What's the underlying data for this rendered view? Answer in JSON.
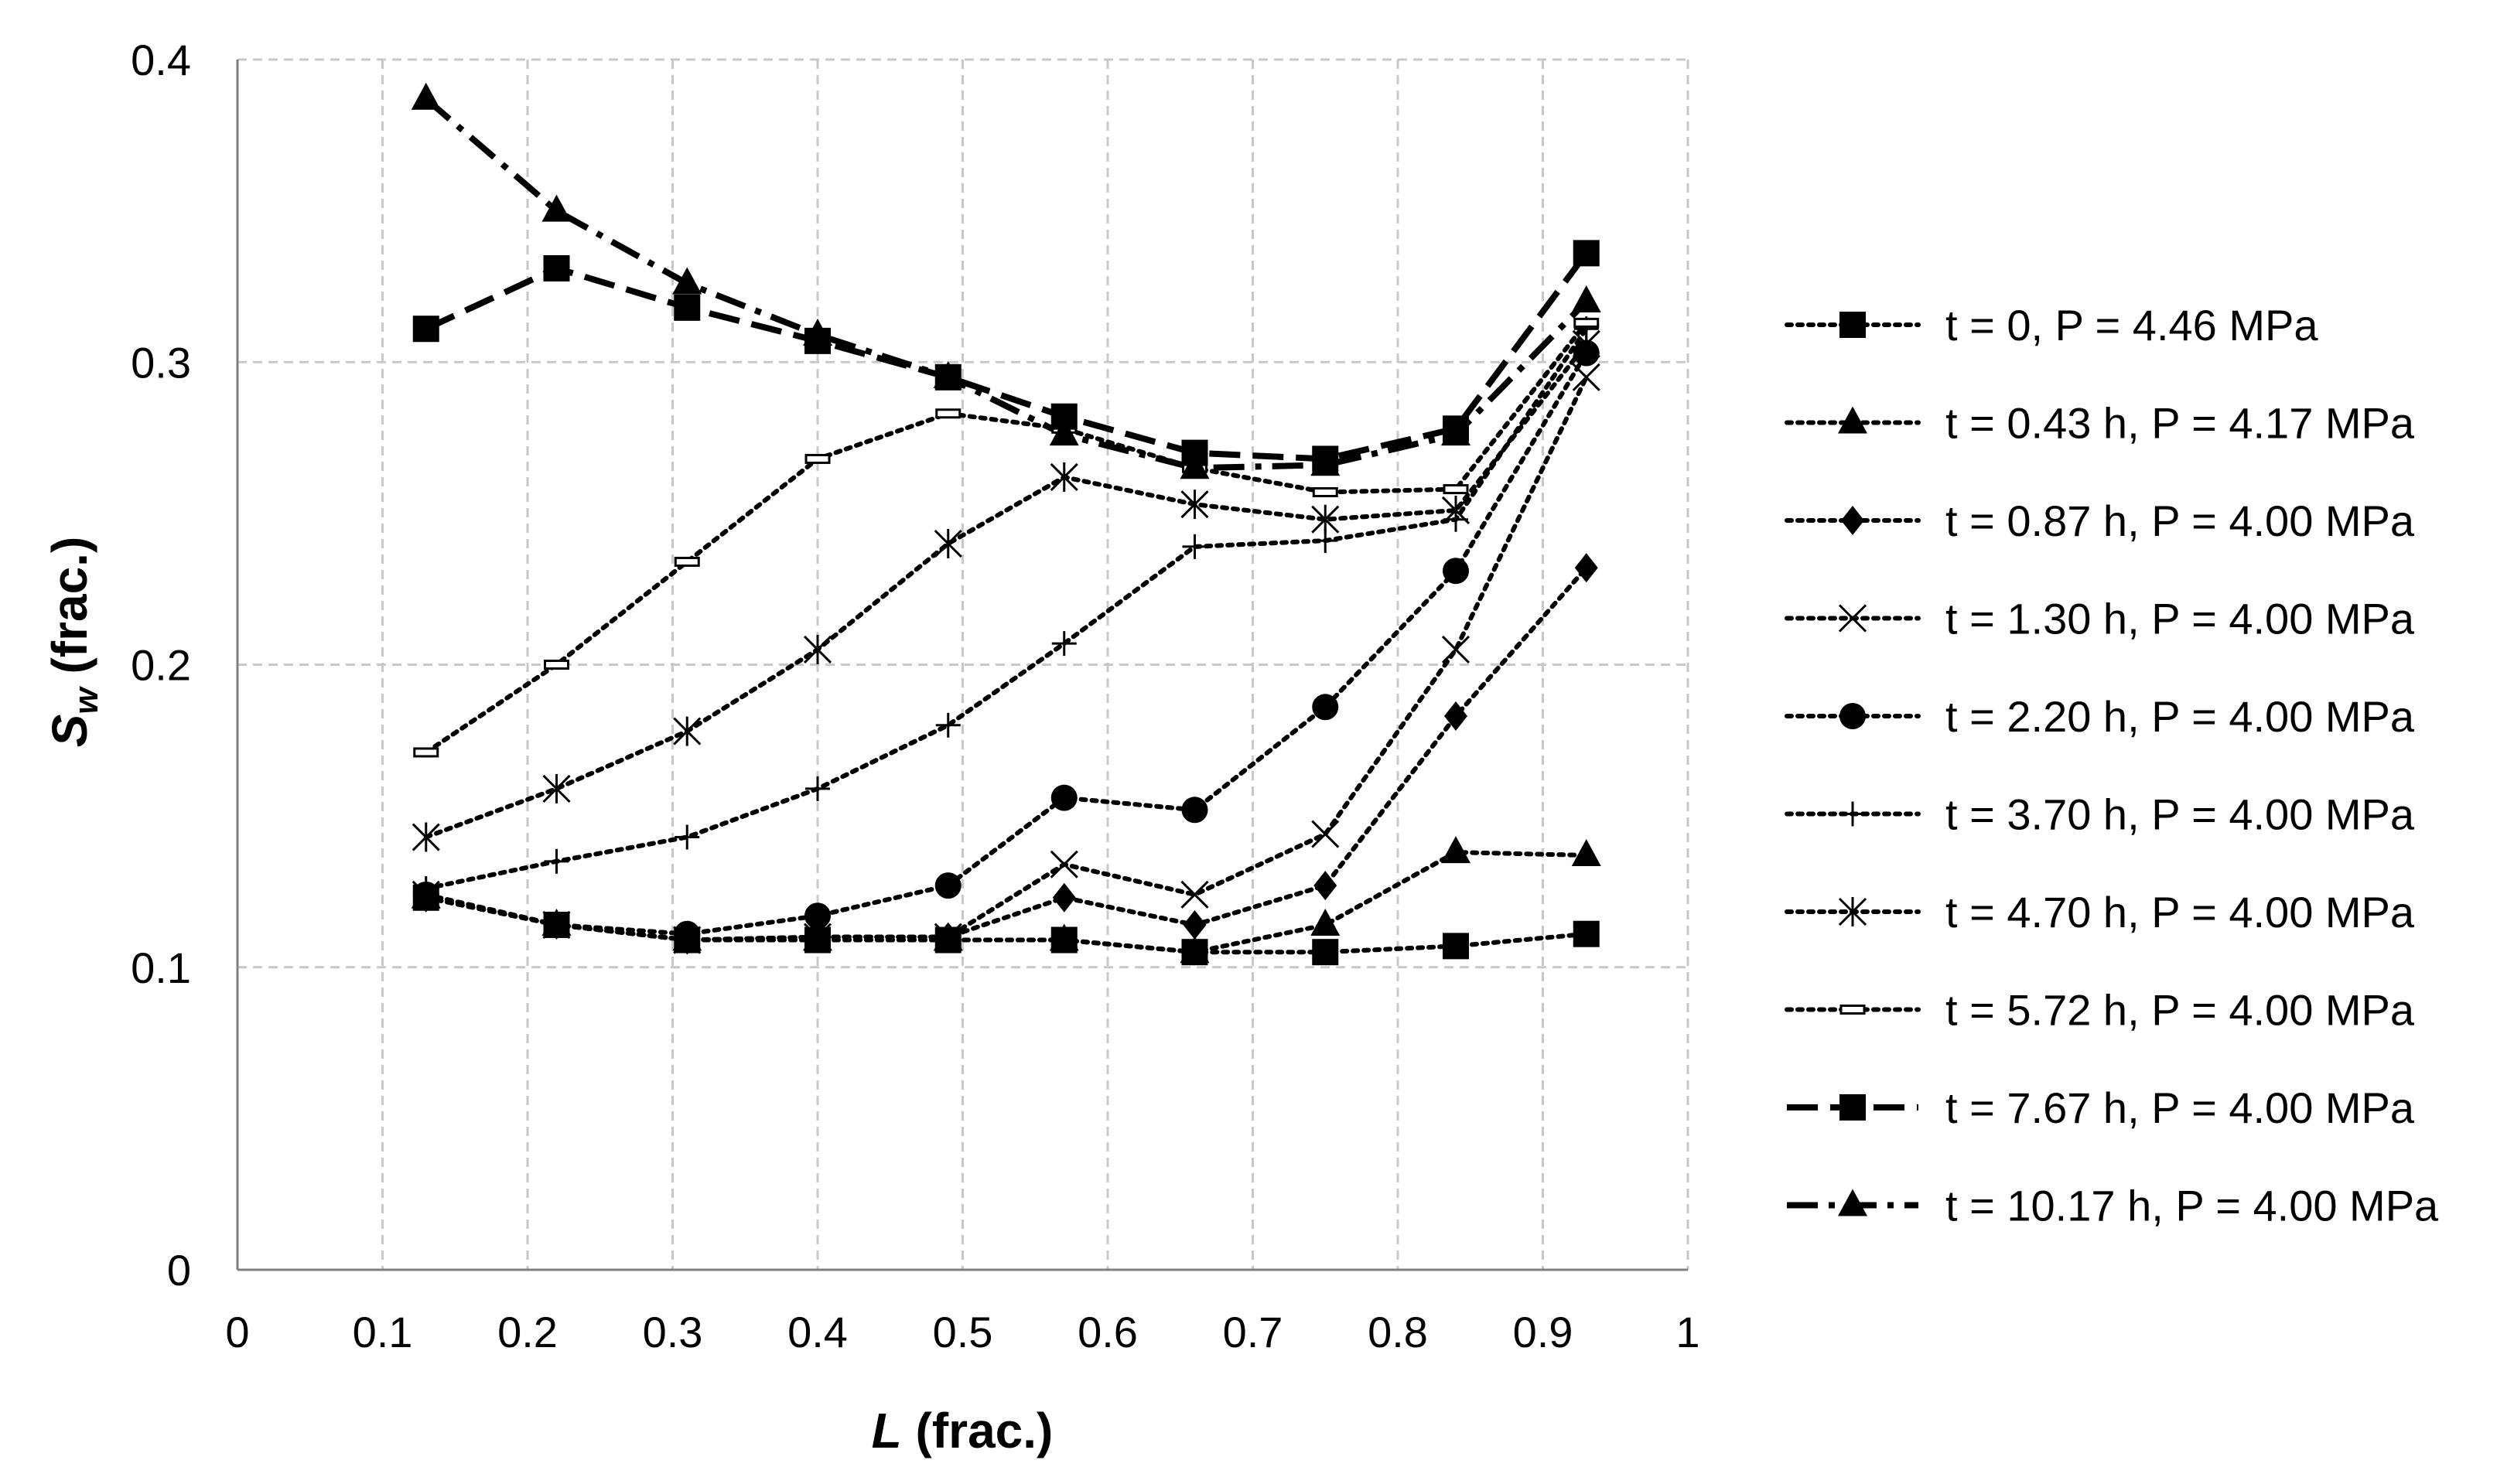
{
  "chart_data": {
    "type": "line",
    "title": "",
    "xlabel_var": "L",
    "xlabel_unit": " (frac.)",
    "ylabel_var": "S",
    "ylabel_sub": "w",
    "ylabel_unit": " (frac.)",
    "xlim": [
      0,
      1
    ],
    "ylim": [
      0,
      0.4
    ],
    "xticks": [
      0,
      0.1,
      0.2,
      0.3,
      0.4,
      0.5,
      0.6,
      0.7,
      0.8,
      0.9,
      1
    ],
    "xtick_labels": [
      "0",
      "0.1",
      "0.2",
      "0.3",
      "0.4",
      "0.5",
      "0.6",
      "0.7",
      "0.8",
      "0.9",
      "1"
    ],
    "yticks": [
      0,
      0.1,
      0.2,
      0.3,
      0.4
    ],
    "ytick_labels": [
      "0",
      "0.1",
      "0.2",
      "0.3",
      "0.4"
    ],
    "grid": true,
    "legend_position": "right",
    "x": [
      0.13,
      0.22,
      0.31,
      0.4,
      0.49,
      0.57,
      0.66,
      0.75,
      0.84,
      0.93
    ],
    "series": [
      {
        "name": "t = 0, P = 4.46 MPa",
        "marker": "square",
        "line": "dotted",
        "values": [
          0.123,
          0.114,
          0.109,
          0.109,
          0.109,
          0.109,
          0.105,
          0.105,
          0.107,
          0.111
        ]
      },
      {
        "name": "t = 0.43 h, P = 4.17 MPa",
        "marker": "triangle",
        "line": "dotted",
        "values": [
          0.123,
          0.114,
          0.109,
          0.109,
          0.109,
          0.109,
          0.105,
          0.114,
          0.138,
          0.137
        ]
      },
      {
        "name": "t = 0.87 h, P = 4.00 MPa",
        "marker": "diamond",
        "line": "dotted",
        "values": [
          0.123,
          0.114,
          0.109,
          0.11,
          0.11,
          0.123,
          0.114,
          0.127,
          0.183,
          0.232
        ]
      },
      {
        "name": "t = 1.30 h, P = 4.00 MPa",
        "marker": "x",
        "line": "dotted",
        "values": [
          0.124,
          0.114,
          0.109,
          0.11,
          0.11,
          0.134,
          0.124,
          0.144,
          0.205,
          0.295
        ]
      },
      {
        "name": "t = 2.20 h, P = 4.00 MPa",
        "marker": "circle",
        "line": "dotted",
        "values": [
          0.124,
          0.114,
          0.111,
          0.117,
          0.127,
          0.156,
          0.152,
          0.186,
          0.231,
          0.303
        ]
      },
      {
        "name": "t = 3.70 h, P = 4.00 MPa",
        "marker": "plus",
        "line": "dotted",
        "values": [
          0.126,
          0.135,
          0.143,
          0.159,
          0.18,
          0.207,
          0.239,
          0.241,
          0.248,
          0.311
        ]
      },
      {
        "name": "t = 4.70 h, P = 4.00 MPa",
        "marker": "asterisk",
        "line": "dotted",
        "values": [
          0.143,
          0.159,
          0.178,
          0.205,
          0.24,
          0.262,
          0.253,
          0.248,
          0.251,
          0.306
        ]
      },
      {
        "name": "t = 5.72 h, P = 4.00 MPa",
        "marker": "dash",
        "line": "dotted",
        "values": [
          0.171,
          0.2,
          0.234,
          0.268,
          0.283,
          0.278,
          0.265,
          0.257,
          0.258,
          0.313
        ]
      },
      {
        "name": "t = 7.67 h, P = 4.00 MPa",
        "marker": "square",
        "line": "dashed",
        "values": [
          0.311,
          0.331,
          0.318,
          0.307,
          0.295,
          0.282,
          0.27,
          0.268,
          0.278,
          0.336
        ]
      },
      {
        "name": "t = 10.17 h, P = 4.00 MPa",
        "marker": "triangle",
        "line": "dashdot",
        "values": [
          0.387,
          0.35,
          0.326,
          0.309,
          0.295,
          0.276,
          0.265,
          0.266,
          0.276,
          0.32
        ]
      }
    ]
  }
}
